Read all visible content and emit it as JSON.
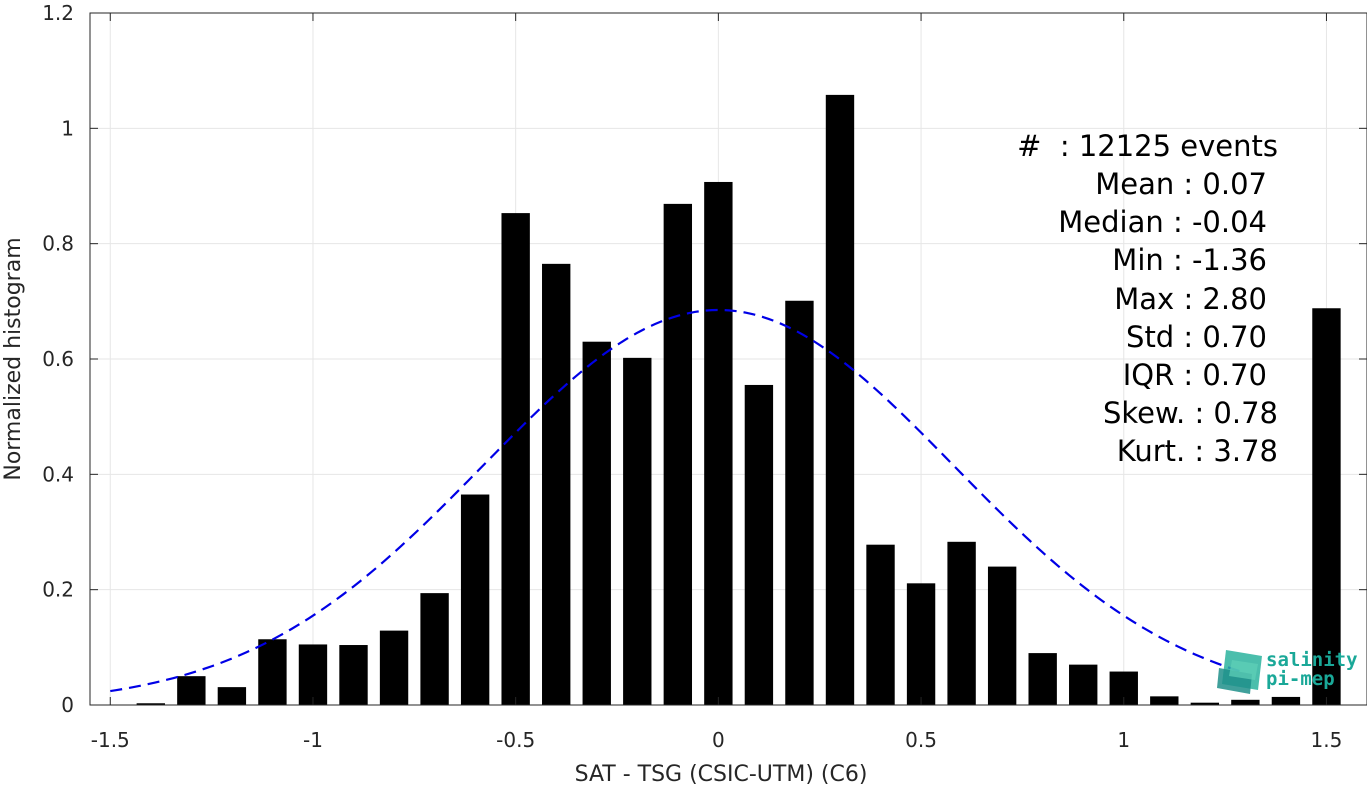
{
  "chart_data": {
    "type": "bar",
    "xlabel": "SAT - TSG (CSIC-UTM) (C6)",
    "ylabel": "Normalized histogram",
    "xlim": [
      -1.55,
      1.6
    ],
    "ylim": [
      0,
      1.2
    ],
    "xticks": [
      -1.5,
      -1,
      -0.5,
      0,
      0.5,
      1,
      1.5
    ],
    "xtick_labels": [
      "-1.5",
      "-1",
      "-0.5",
      "0",
      "0.5",
      "1",
      "1.5"
    ],
    "yticks": [
      0,
      0.2,
      0.4,
      0.6,
      0.8,
      1,
      1.2
    ],
    "ytick_labels": [
      "0",
      "0.2",
      "0.4",
      "0.6",
      "0.8",
      "1",
      "1.2"
    ],
    "grid": true,
    "bin_width": 0.1,
    "bar_color": "#000000",
    "bars": [
      {
        "x": -1.4,
        "y": 0.003
      },
      {
        "x": -1.3,
        "y": 0.05
      },
      {
        "x": -1.2,
        "y": 0.031
      },
      {
        "x": -1.1,
        "y": 0.114
      },
      {
        "x": -1.0,
        "y": 0.105
      },
      {
        "x": -0.9,
        "y": 0.104
      },
      {
        "x": -0.8,
        "y": 0.129
      },
      {
        "x": -0.7,
        "y": 0.194
      },
      {
        "x": -0.6,
        "y": 0.365
      },
      {
        "x": -0.5,
        "y": 0.853
      },
      {
        "x": -0.4,
        "y": 0.765
      },
      {
        "x": -0.3,
        "y": 0.63
      },
      {
        "x": -0.2,
        "y": 0.602
      },
      {
        "x": -0.1,
        "y": 0.869
      },
      {
        "x": 0.0,
        "y": 0.907
      },
      {
        "x": 0.1,
        "y": 0.555
      },
      {
        "x": 0.2,
        "y": 0.701
      },
      {
        "x": 0.3,
        "y": 1.058
      },
      {
        "x": 0.4,
        "y": 0.278
      },
      {
        "x": 0.5,
        "y": 0.211
      },
      {
        "x": 0.6,
        "y": 0.283
      },
      {
        "x": 0.7,
        "y": 0.24
      },
      {
        "x": 0.8,
        "y": 0.09
      },
      {
        "x": 0.9,
        "y": 0.07
      },
      {
        "x": 1.0,
        "y": 0.058
      },
      {
        "x": 1.1,
        "y": 0.015
      },
      {
        "x": 1.2,
        "y": 0.004
      },
      {
        "x": 1.3,
        "y": 0.009
      },
      {
        "x": 1.4,
        "y": 0.014
      },
      {
        "x": 1.5,
        "y": 0.688
      }
    ],
    "fit_curve": {
      "type": "gaussian",
      "style": "dashed",
      "color": "#0000e6",
      "mean": 0.0,
      "sigma": 0.58,
      "peak": 0.685,
      "x_range": [
        -1.5,
        1.3
      ]
    },
    "stats": {
      "count": "#  : 12125 events",
      "mean": "Mean : 0.07",
      "median": "Median : -0.04",
      "min": "Min : -1.36",
      "max": "Max : 2.80",
      "std": "Std : 0.70",
      "iqr": "IQR : 0.70",
      "skew": "Skew. : 0.78",
      "kurt": "Kurt. : 3.78"
    },
    "logo": {
      "line1": "salinity",
      "line2": "pi-mep",
      "color": "#1aa898"
    }
  }
}
